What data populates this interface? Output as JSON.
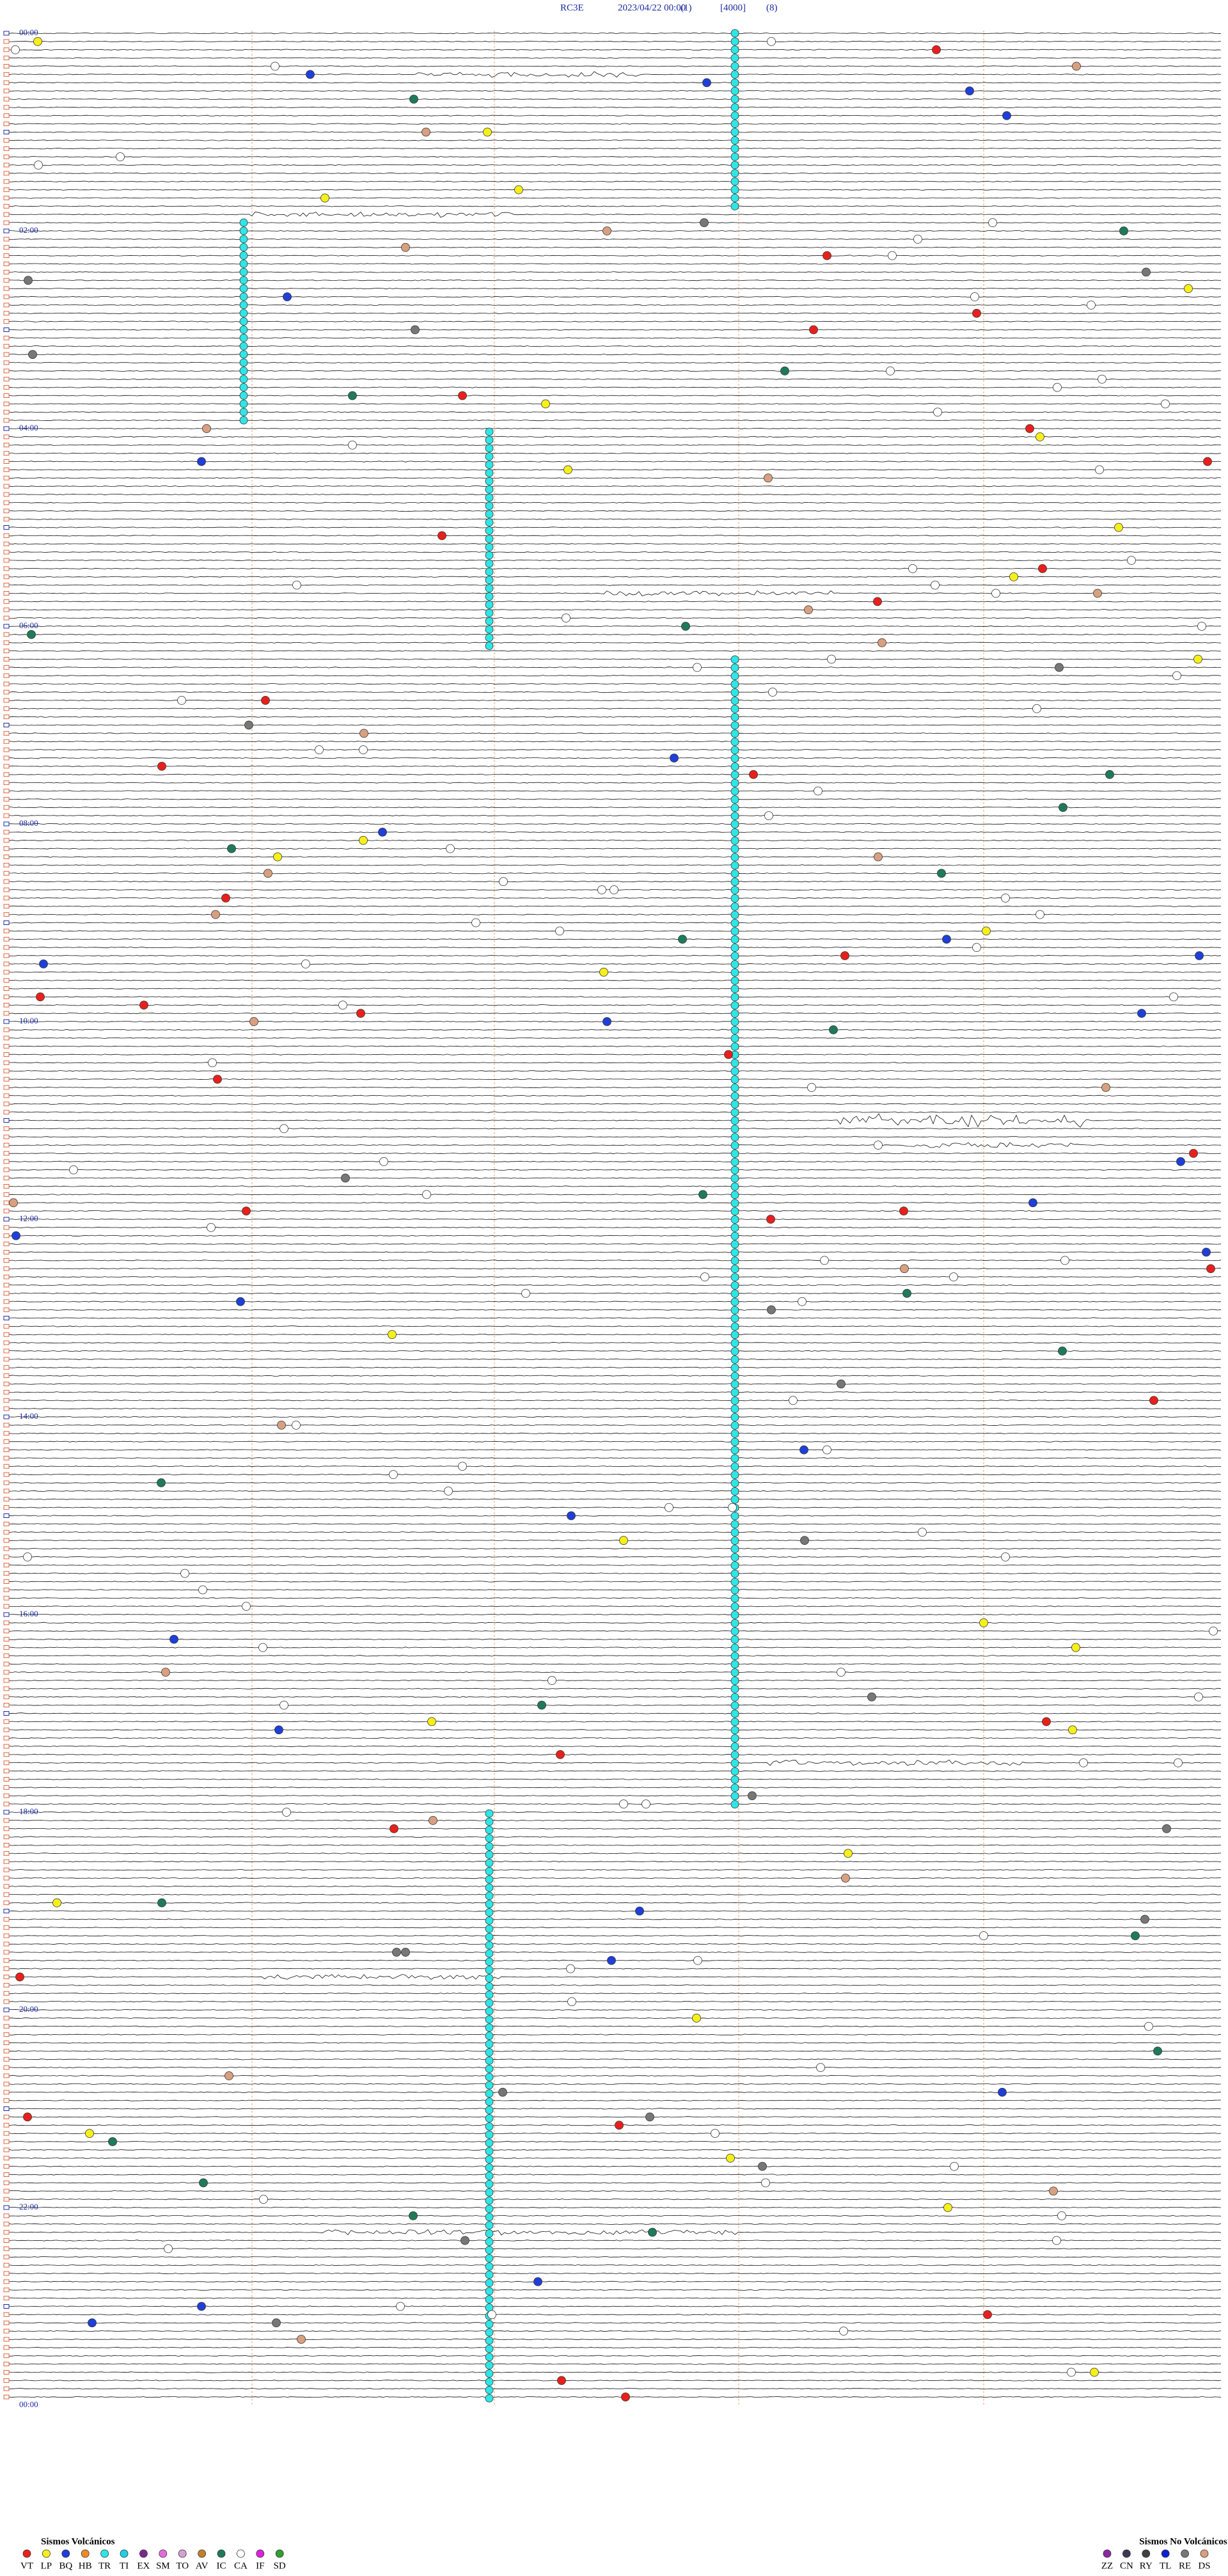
{
  "header": {
    "station": "RC3E",
    "datetime": "2023/04/22 00:00",
    "channel": "(1)",
    "gain": "[4000]",
    "filter": "(8)"
  },
  "hour_labels": [
    "00:00",
    "02:00",
    "04:00",
    "06:00",
    "08:00",
    "10:00",
    "12:00",
    "14:00",
    "16:00",
    "18:00",
    "20:00",
    "22:00",
    "00:00"
  ],
  "legend_volcanic": {
    "title": "Sismos Volcánicos",
    "items": [
      {
        "code": "VT",
        "color": "#e8201c"
      },
      {
        "code": "LP",
        "color": "#f5f01a"
      },
      {
        "code": "BQ",
        "color": "#1f3fd8"
      },
      {
        "code": "HB",
        "color": "#f08a24"
      },
      {
        "code": "TR",
        "color": "#2ee6e6"
      },
      {
        "code": "TI",
        "color": "#1fd0e0"
      },
      {
        "code": "EX",
        "color": "#7a2a8a"
      },
      {
        "code": "SM",
        "color": "#e070d8"
      },
      {
        "code": "TO",
        "color": "#d8a0d0"
      },
      {
        "code": "AV",
        "color": "#c08030"
      },
      {
        "code": "IC",
        "color": "#1f7a5a"
      },
      {
        "code": "CA",
        "color": "#ffffff"
      },
      {
        "code": "IF",
        "color": "#e020e0"
      },
      {
        "code": "SD",
        "color": "#30a030"
      }
    ]
  },
  "legend_non_volcanic": {
    "title": "Sismos No Volcánicos",
    "items": [
      {
        "code": "ZZ",
        "color": "#8a2aa0"
      },
      {
        "code": "CN",
        "color": "#3a3a50"
      },
      {
        "code": "RY",
        "color": "#404040"
      },
      {
        "code": "TL",
        "color": "#1020d0"
      },
      {
        "code": "RE",
        "color": "#777777"
      },
      {
        "code": "DS",
        "color": "#d8a080"
      }
    ]
  }
}
